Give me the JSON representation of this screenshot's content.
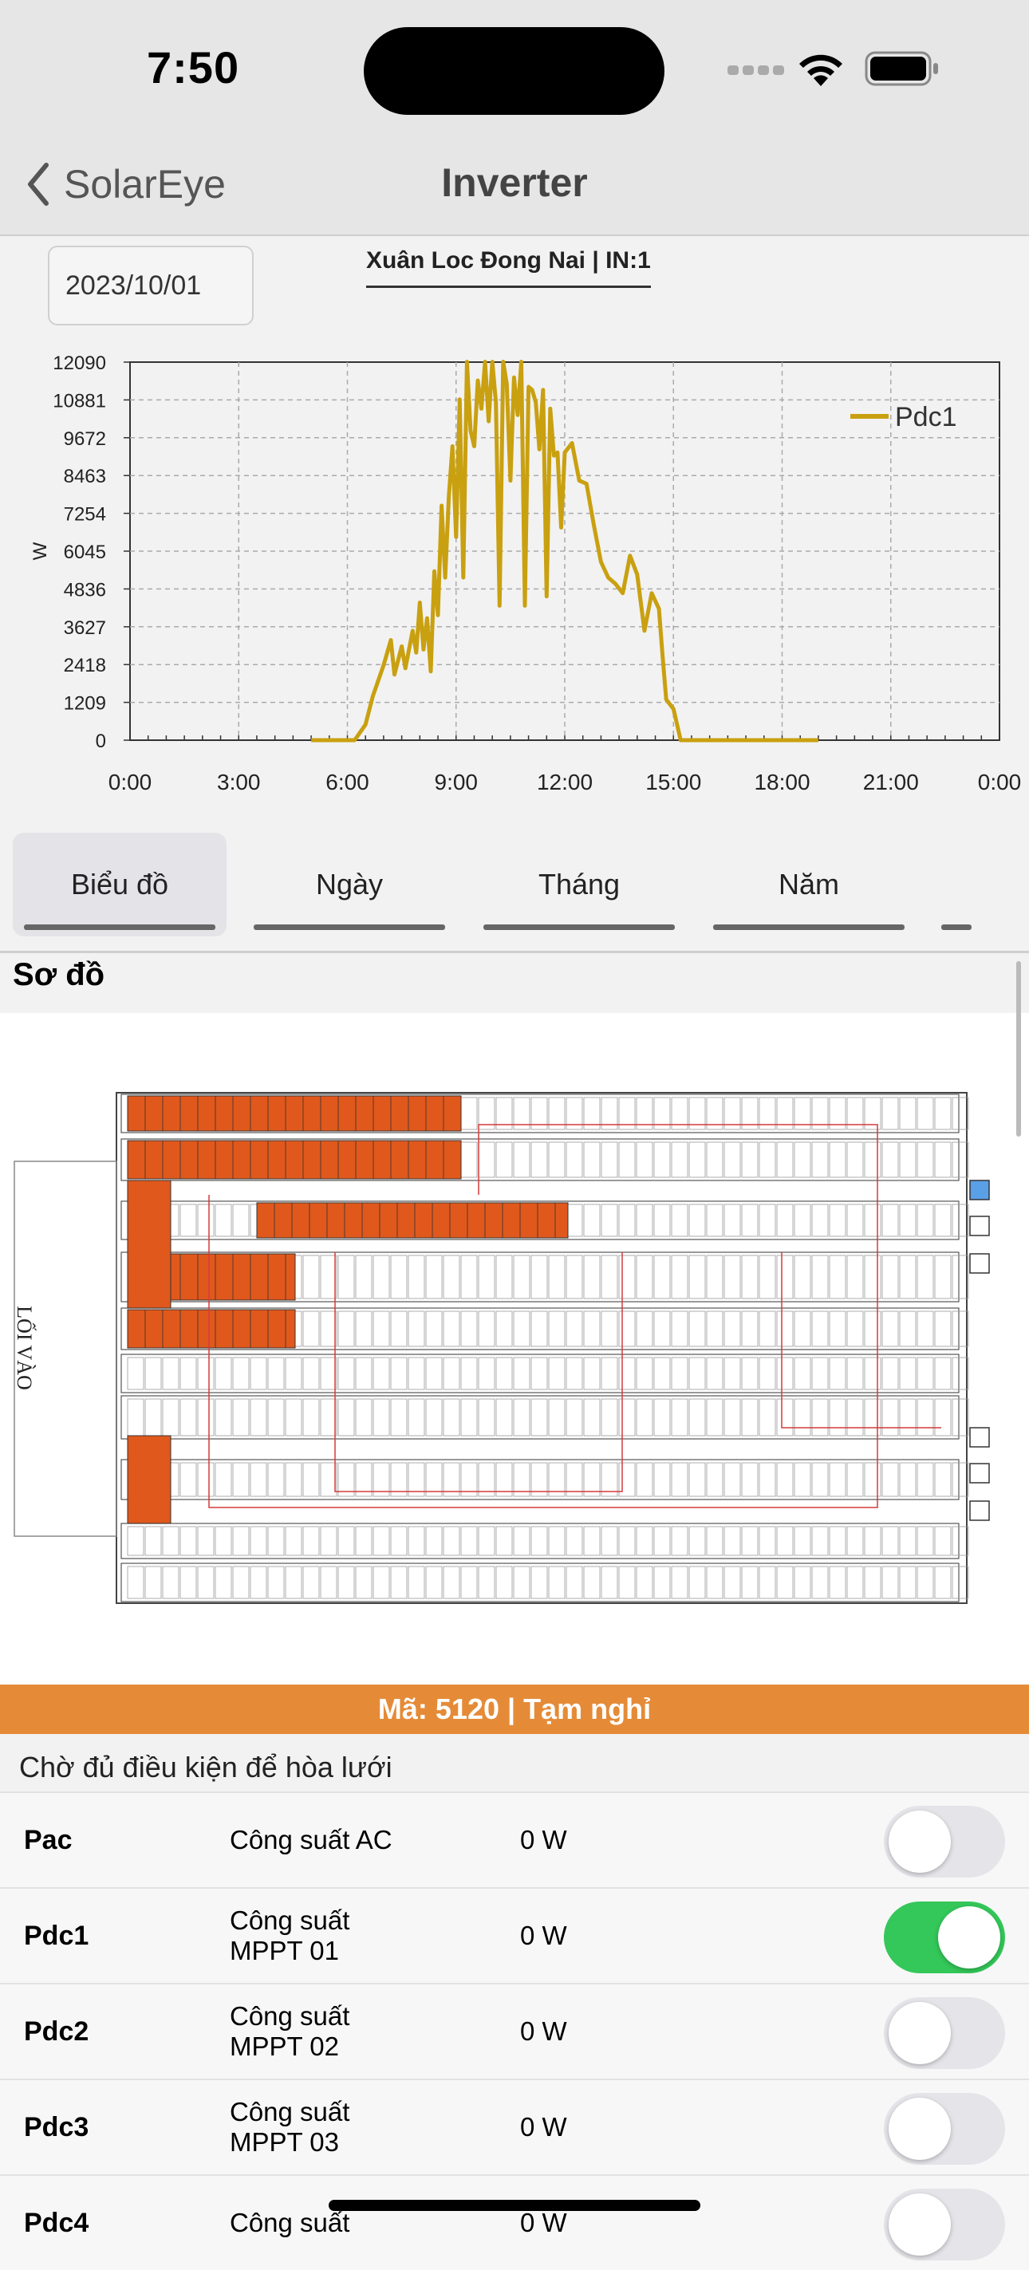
{
  "status_bar": {
    "time": "7:50"
  },
  "nav": {
    "back_label": "SolarEye",
    "title": "Inverter"
  },
  "filter": {
    "date": "2023/10/01",
    "station": "Xuân Loc Đong Nai | IN:1"
  },
  "chart_data": {
    "type": "line",
    "ylabel": "W",
    "xlabel": "",
    "y_ticks": [
      "12090",
      "10881",
      "9672",
      "8463",
      "7254",
      "6045",
      "4836",
      "3627",
      "2418",
      "1209",
      "0"
    ],
    "x_ticks": [
      "0:00",
      "3:00",
      "6:00",
      "9:00",
      "12:00",
      "15:00",
      "18:00",
      "21:00",
      "0:00"
    ],
    "ylim": [
      0,
      12090
    ],
    "xlim_hours": [
      0,
      24
    ],
    "grid": true,
    "legend_position": "top-right",
    "series": [
      {
        "name": "Pdc1",
        "color": "#c9a010",
        "x_hours": [
          5.0,
          6.2,
          6.5,
          6.7,
          7.0,
          7.2,
          7.3,
          7.5,
          7.6,
          7.8,
          7.9,
          8.0,
          8.1,
          8.2,
          8.3,
          8.4,
          8.5,
          8.6,
          8.7,
          8.8,
          8.9,
          9.0,
          9.1,
          9.2,
          9.3,
          9.4,
          9.5,
          9.6,
          9.7,
          9.8,
          9.9,
          10.0,
          10.1,
          10.2,
          10.3,
          10.4,
          10.5,
          10.6,
          10.7,
          10.8,
          10.9,
          11.0,
          11.1,
          11.2,
          11.3,
          11.4,
          11.5,
          11.6,
          11.7,
          11.8,
          11.9,
          12.0,
          12.2,
          12.4,
          12.6,
          12.8,
          13.0,
          13.2,
          13.4,
          13.6,
          13.8,
          14.0,
          14.2,
          14.4,
          14.6,
          14.7,
          14.8,
          15.0,
          15.2,
          15.4,
          15.5,
          15.6,
          15.7,
          15.8,
          16.0,
          17.0,
          18.0,
          19.0
        ],
        "values": [
          0,
          0,
          500,
          1400,
          2400,
          3200,
          2100,
          3000,
          2300,
          3500,
          2800,
          4400,
          2900,
          3900,
          2200,
          5400,
          4000,
          7500,
          5200,
          7800,
          9400,
          6500,
          10900,
          5200,
          12100,
          9900,
          9400,
          11500,
          10600,
          12100,
          10200,
          12100,
          10800,
          4300,
          12100,
          11400,
          8300,
          11600,
          10400,
          12100,
          4300,
          11300,
          11200,
          10800,
          9300,
          11200,
          4600,
          10600,
          9100,
          9200,
          6800,
          9200,
          9500,
          8300,
          8200,
          6900,
          5700,
          5200,
          5000,
          4700,
          5900,
          5300,
          3500,
          4700,
          4200,
          2700,
          1300,
          1000,
          0,
          0,
          0,
          0,
          0,
          0,
          0,
          0,
          0,
          0
        ]
      }
    ]
  },
  "tabs": [
    {
      "label": "Biểu đồ",
      "active": true
    },
    {
      "label": "Ngày",
      "active": false
    },
    {
      "label": "Tháng",
      "active": false
    },
    {
      "label": "Năm",
      "active": false
    }
  ],
  "diagram": {
    "title": "Sơ đồ",
    "entrance_label": "LỐI VÀO"
  },
  "inverter_status": {
    "banner": "Mã: 5120 | Tạm nghỉ",
    "message": "Chờ đủ điều kiện để hòa lưới"
  },
  "params": [
    {
      "code": "Pac",
      "desc": "Công suất AC",
      "value": "0 W",
      "enabled": false
    },
    {
      "code": "Pdc1",
      "desc": "Công suất MPPT 01",
      "value": "0 W",
      "enabled": true
    },
    {
      "code": "Pdc2",
      "desc": "Công suất MPPT 02",
      "value": "0 W",
      "enabled": false
    },
    {
      "code": "Pdc3",
      "desc": "Công suất MPPT 03",
      "value": "0 W",
      "enabled": false
    },
    {
      "code": "Pdc4",
      "desc": "Công suất",
      "value": "0 W",
      "enabled": false
    }
  ]
}
